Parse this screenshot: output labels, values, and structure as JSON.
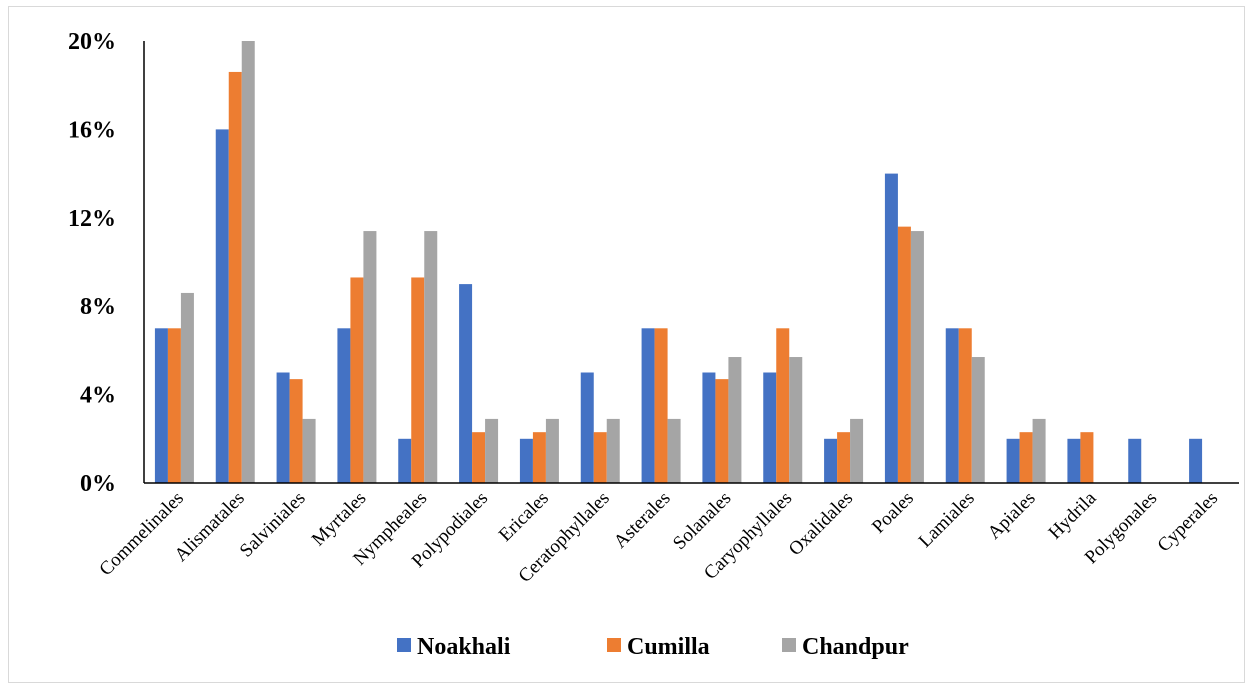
{
  "chart_data": {
    "type": "bar",
    "title": "",
    "xlabel": "",
    "ylabel": "",
    "ylim": [
      0,
      0.2
    ],
    "yticks": [
      0,
      0.04,
      0.08,
      0.12,
      0.16,
      0.2
    ],
    "ytick_labels": [
      "0%",
      "4%",
      "8%",
      "12%",
      "16%",
      "20%"
    ],
    "grid": false,
    "legend_position": "bottom",
    "categories": [
      "Commelinales",
      "Alismatales",
      "Salviniales",
      "Myrtales",
      "Nympheales",
      "Polypodiales",
      "Ericales",
      "Ceratophyllales",
      "Asterales",
      "Solanales",
      "Caryophyllales",
      "Oxalidales",
      "Poales",
      "Lamiales",
      "Apiales",
      "Hydrila",
      "Polygonales",
      "Cyperales"
    ],
    "series": [
      {
        "name": "Noakhali",
        "color": "#4472c4",
        "values": [
          0.07,
          0.16,
          0.05,
          0.07,
          0.02,
          0.09,
          0.02,
          0.05,
          0.07,
          0.05,
          0.05,
          0.02,
          0.14,
          0.07,
          0.02,
          0.02,
          0.02,
          0.02
        ]
      },
      {
        "name": "Cumilla",
        "color": "#ed7d31",
        "values": [
          0.07,
          0.186,
          0.047,
          0.093,
          0.093,
          0.023,
          0.023,
          0.023,
          0.07,
          0.047,
          0.07,
          0.023,
          0.116,
          0.07,
          0.023,
          0.023,
          0,
          0
        ]
      },
      {
        "name": "Chandpur",
        "color": "#a5a5a5",
        "values": [
          0.086,
          0.2,
          0.029,
          0.114,
          0.114,
          0.029,
          0.029,
          0.029,
          0.029,
          0.057,
          0.057,
          0.029,
          0.114,
          0.057,
          0.029,
          0,
          0,
          0
        ]
      }
    ]
  }
}
